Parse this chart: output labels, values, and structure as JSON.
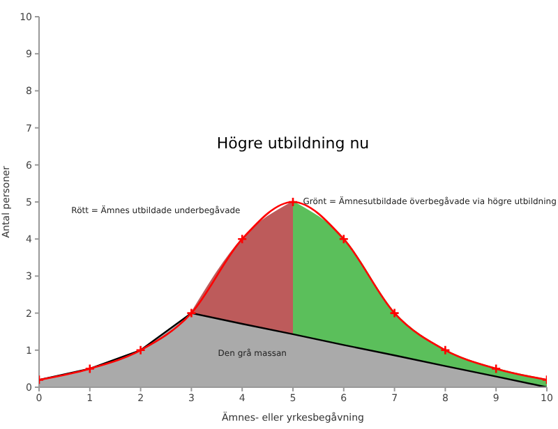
{
  "chart_data": {
    "type": "area",
    "title": "Högre utbildning nu",
    "xlabel": "Ämnes- eller yrkesbegåvning",
    "ylabel": "Antal personer",
    "annotations": [
      "Rött = Ämnes utbildade underbegåvade",
      "Grönt = Ämnesutbildade överbegåvade via högre utbildning",
      "Den grå massan"
    ],
    "x": [
      0,
      1,
      2,
      3,
      4,
      5,
      6,
      7,
      8,
      9,
      10
    ],
    "xlim": [
      0,
      10
    ],
    "xticks": [
      0,
      1,
      2,
      3,
      4,
      5,
      6,
      7,
      8,
      9,
      10
    ],
    "ylim": [
      0,
      10
    ],
    "yticks": [
      0,
      1,
      2,
      3,
      4,
      5,
      6,
      7,
      8,
      9,
      10
    ],
    "series": [
      {
        "color": "#bd5b5b",
        "values": [
          null,
          null,
          null,
          2,
          4,
          5,
          null,
          null,
          null,
          null,
          null
        ]
      },
      {
        "color": "#5bbf5b",
        "values": [
          null,
          null,
          null,
          null,
          null,
          5,
          4,
          2,
          1,
          0.5,
          0.2
        ]
      },
      {
        "color": "#aaaaaa",
        "values": [
          0.2,
          0.5,
          1,
          2,
          1.71,
          1.43,
          1.14,
          0.86,
          0.57,
          0.29,
          0
        ]
      },
      {
        "type": "line",
        "color": "#ff0000",
        "marker": "cross",
        "values": [
          0.2,
          0.5,
          1,
          2,
          4,
          5,
          4,
          2,
          1,
          0.5,
          0.2
        ]
      }
    ]
  }
}
